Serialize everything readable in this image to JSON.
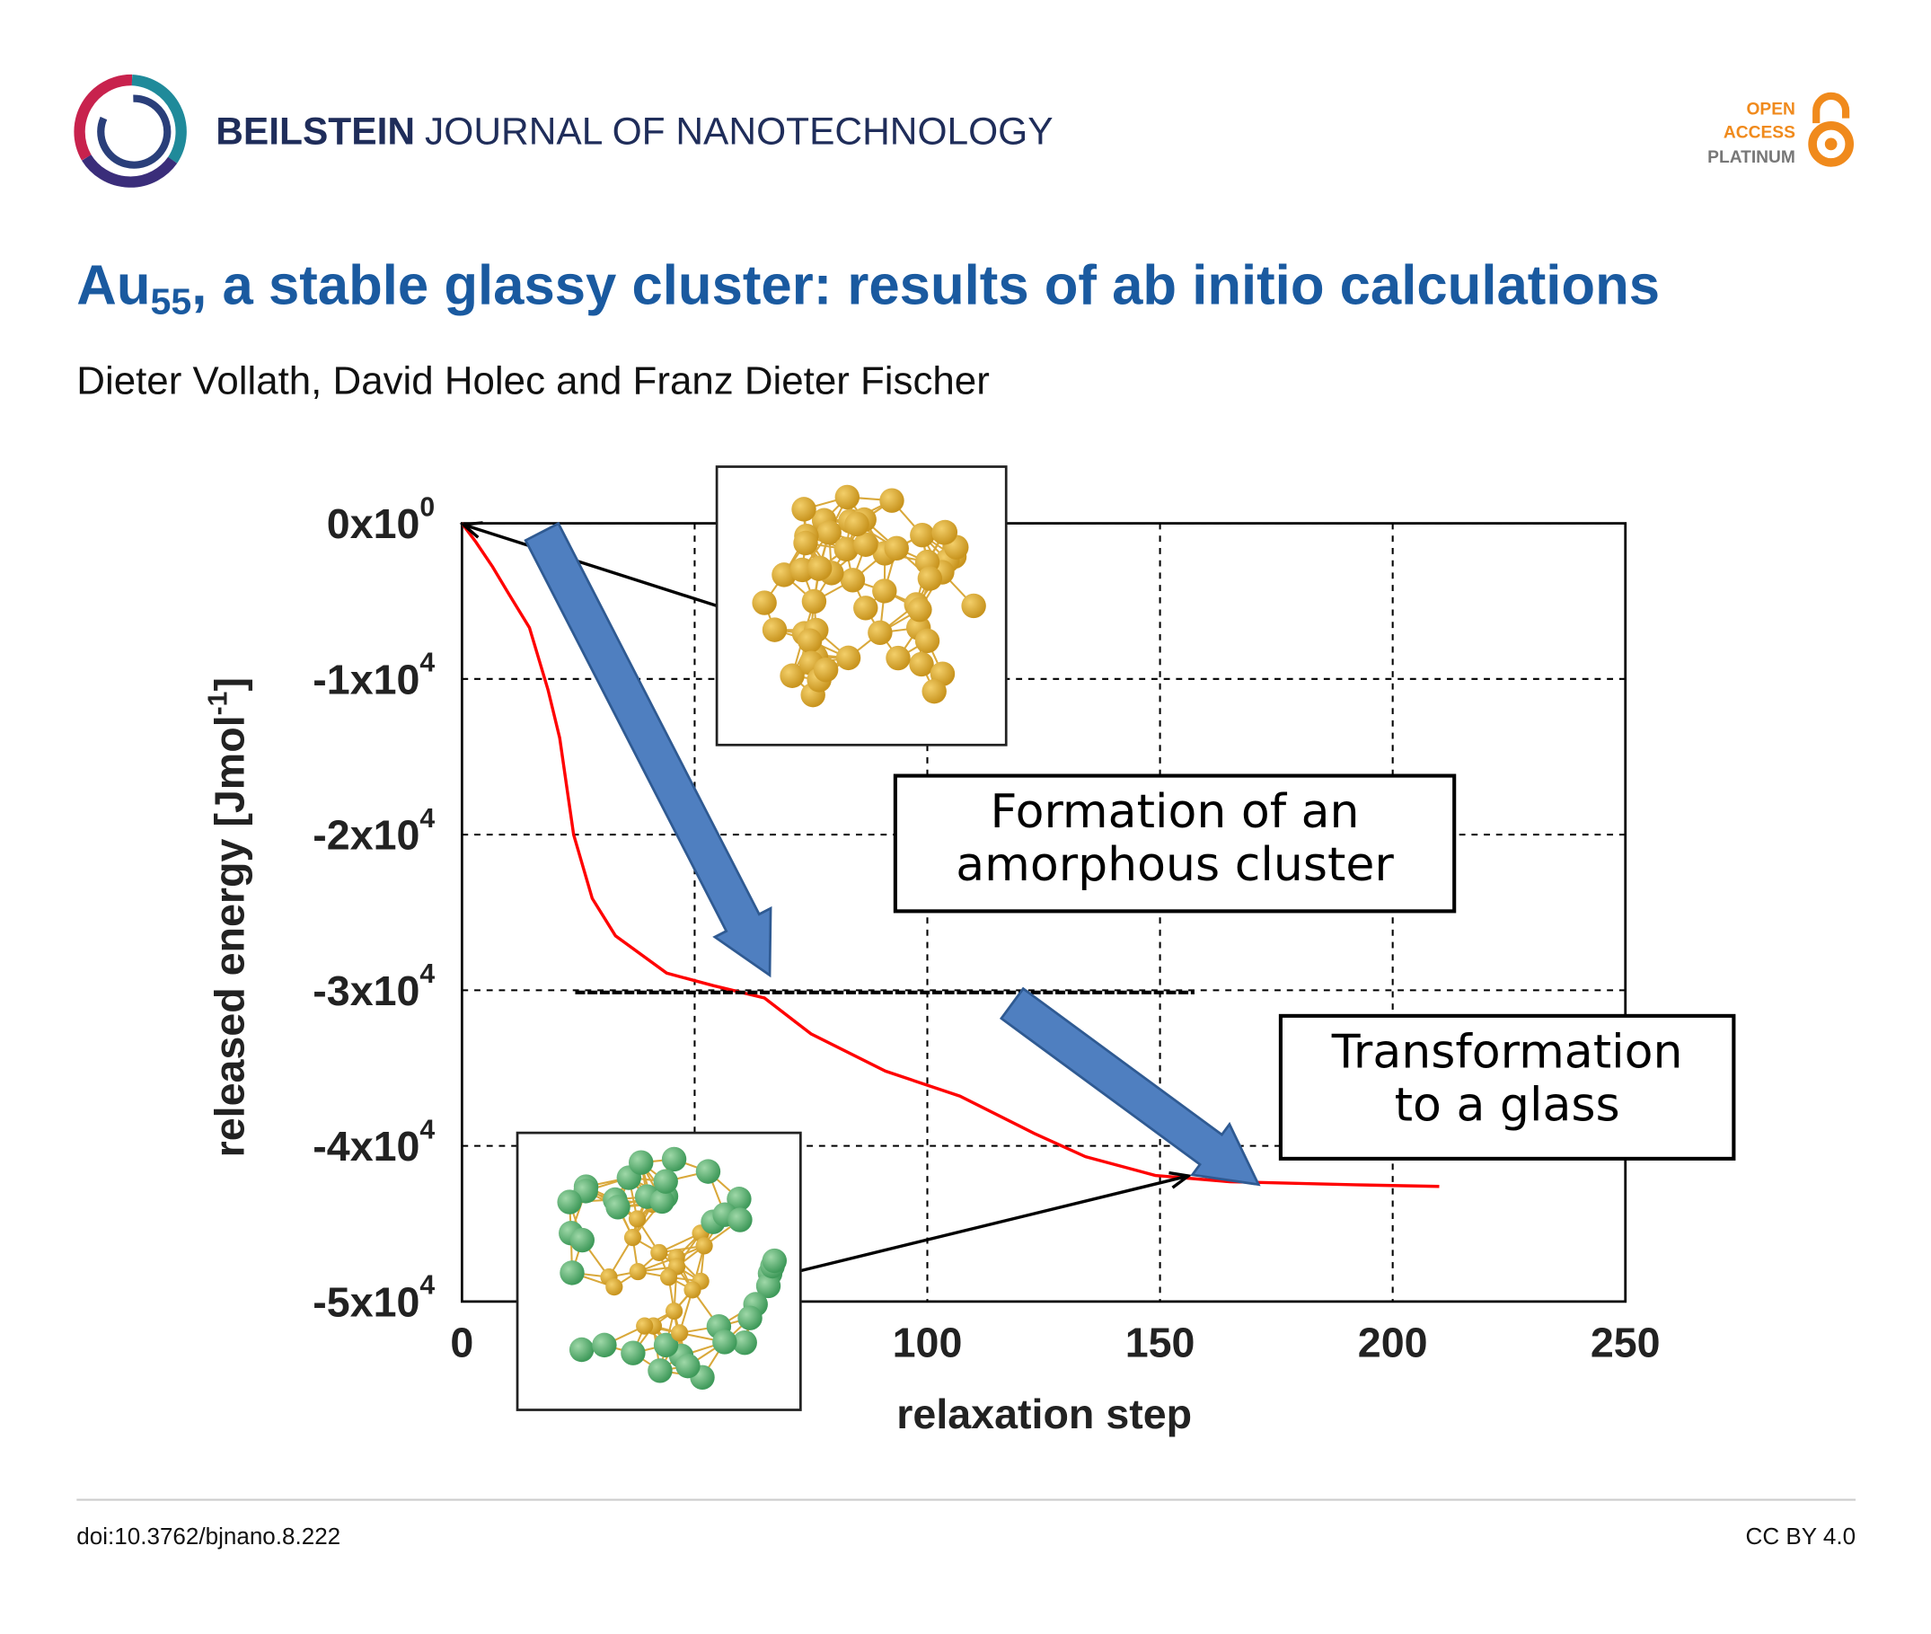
{
  "header": {
    "journal_bold": "BEILSTEIN",
    "journal_rest": "JOURNAL OF NANOTECHNOLOGY",
    "badge": [
      "OPEN",
      "ACCESS",
      "PLATINUM"
    ]
  },
  "title": {
    "prefix": "Au",
    "subscript": "55",
    "rest": ", a stable glassy cluster: results of ab initio calculations"
  },
  "authors": "Dieter Vollath, David Holec and Franz Dieter Fischer",
  "chart_data": {
    "type": "line",
    "xlabel": "relaxation step",
    "ylabel": {
      "text": "released energy [Jmol",
      "superscript": "-1",
      "end": "]"
    },
    "xlim": [
      0,
      250
    ],
    "xticks": [
      0,
      50,
      100,
      150,
      200,
      250
    ],
    "ylim": [
      -50000,
      0
    ],
    "yticks": [
      {
        "value": 0,
        "label": "0x10",
        "exponent": "0"
      },
      {
        "value": -10000,
        "label": "-1x10",
        "exponent": "4"
      },
      {
        "value": -20000,
        "label": "-2x10",
        "exponent": "4"
      },
      {
        "value": -30000,
        "label": "-3x10",
        "exponent": "4"
      },
      {
        "value": -40000,
        "label": "-4x10",
        "exponent": "4"
      },
      {
        "value": -50000,
        "label": "-5x10",
        "exponent": "4"
      }
    ],
    "grid": true,
    "color": "#ff0000",
    "x": [
      0,
      3,
      6.6,
      10,
      14.5,
      18.5,
      21,
      24,
      28,
      33,
      44,
      54,
      65,
      75,
      91,
      107,
      123,
      134,
      149,
      165,
      192,
      210
    ],
    "values": [
      0,
      -1200,
      -2800,
      -4500,
      -6700,
      -10700,
      -13800,
      -20000,
      -24100,
      -26500,
      -28900,
      -29700,
      -30500,
      -32800,
      -35200,
      -36800,
      -39200,
      -40700,
      -41900,
      -42300,
      -42500,
      -42600
    ],
    "annotations": [
      {
        "lines": [
          "Formation of an",
          "amorphous cluster"
        ]
      },
      {
        "lines": [
          "Transformation",
          "to a glass"
        ]
      }
    ]
  },
  "footer": {
    "doi": "doi:10.3762/bjnano.8.222",
    "license": "CC BY 4.0"
  }
}
